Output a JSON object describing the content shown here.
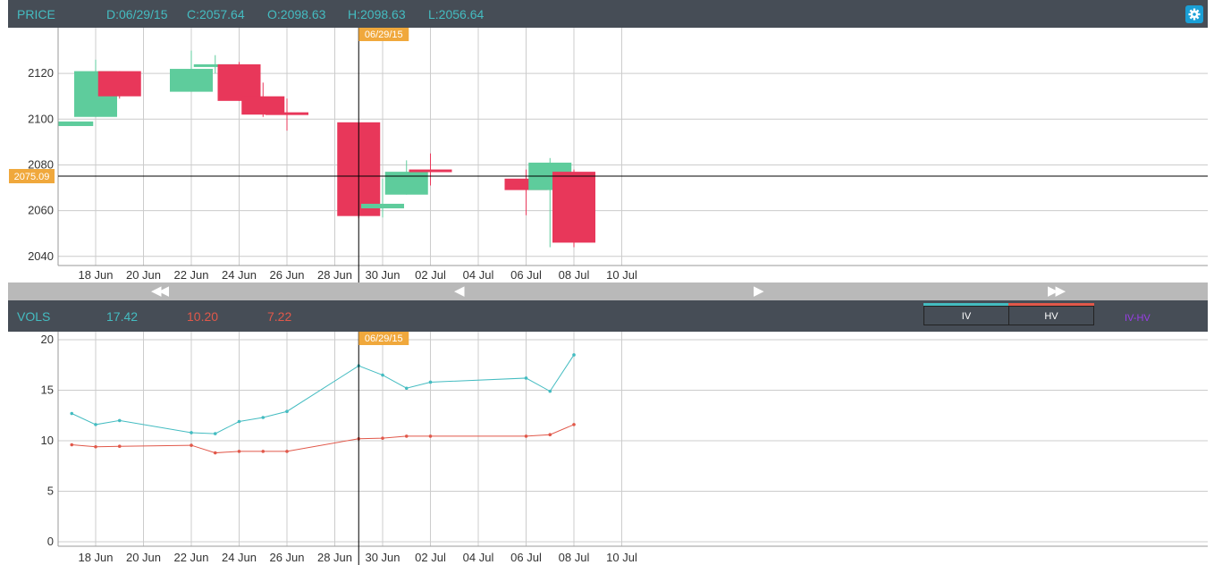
{
  "price_header": {
    "label": "PRICE",
    "date": "D:06/29/15",
    "close": "C:2057.64",
    "open": "O:2098.63",
    "high": "H:2098.63",
    "low": "L:2056.64",
    "settings_icon": "gear-icon"
  },
  "vols_header": {
    "label": "VOLS",
    "iv_value": "17.42",
    "hv_value": "10.20",
    "diff_value": "7.22",
    "iv_button": "IV",
    "hv_button": "HV",
    "diff_button": "IV-HV"
  },
  "navigation": {
    "fast_back": "◀◀",
    "back": "◀",
    "forward": "▶",
    "fast_forward": "▶▶"
  },
  "colors": {
    "up": "#5ecc9c",
    "down": "#e8375a",
    "iv": "#44bcc1",
    "hv": "#e1584a",
    "diff": "#9b3dea",
    "crosshair_badge": "#f0a83c",
    "header_bg": "#464d56",
    "header_text": "#44bcc1"
  },
  "crosshair": {
    "date": "06/29/15",
    "price": "2075.09"
  },
  "chart_data": [
    {
      "type": "candlestick",
      "title": "PRICE",
      "ylim": [
        2036,
        2140
      ],
      "yticks": [
        2040,
        2060,
        2080,
        2100,
        2120
      ],
      "xticks": [
        "18 Jun",
        "20 Jun",
        "22 Jun",
        "24 Jun",
        "26 Jun",
        "28 Jun",
        "30 Jun",
        "02 Jul",
        "04 Jul",
        "06 Jul",
        "08 Jul",
        "10 Jul"
      ],
      "grid": true,
      "candles": [
        {
          "date": "2015-06-17",
          "open": 2097,
          "close": 2099,
          "high": 2099,
          "low": 2097
        },
        {
          "date": "2015-06-18",
          "open": 2101,
          "close": 2121,
          "high": 2126,
          "low": 2101
        },
        {
          "date": "2015-06-19",
          "open": 2121,
          "close": 2110,
          "high": 2121,
          "low": 2109
        },
        {
          "date": "2015-06-22",
          "open": 2112,
          "close": 2122,
          "high": 2130,
          "low": 2112
        },
        {
          "date": "2015-06-23",
          "open": 2123,
          "close": 2124,
          "high": 2128,
          "low": 2120
        },
        {
          "date": "2015-06-24",
          "open": 2124,
          "close": 2108,
          "high": 2125,
          "low": 2108
        },
        {
          "date": "2015-06-25",
          "open": 2110,
          "close": 2102,
          "high": 2116,
          "low": 2101
        },
        {
          "date": "2015-06-26",
          "open": 2103,
          "close": 2102,
          "high": 2109,
          "low": 2095
        },
        {
          "date": "2015-06-29",
          "open": 2098.63,
          "close": 2057.64,
          "high": 2098.63,
          "low": 2056.64
        },
        {
          "date": "2015-06-30",
          "open": 2061,
          "close": 2063,
          "high": 2074,
          "low": 2057
        },
        {
          "date": "2015-07-01",
          "open": 2067,
          "close": 2077,
          "high": 2082,
          "low": 2067
        },
        {
          "date": "2015-07-02",
          "open": 2078,
          "close": 2077,
          "high": 2085,
          "low": 2071
        },
        {
          "date": "2015-07-06",
          "open": 2074,
          "close": 2069,
          "high": 2078,
          "low": 2058
        },
        {
          "date": "2015-07-07",
          "open": 2069,
          "close": 2081,
          "high": 2083,
          "low": 2044
        },
        {
          "date": "2015-07-08",
          "open": 2077,
          "close": 2046,
          "high": 2078,
          "low": 2044
        }
      ]
    },
    {
      "type": "line",
      "title": "VOLS",
      "ylim": [
        0,
        20
      ],
      "yticks": [
        0,
        5,
        10,
        15,
        20
      ],
      "xticks": [
        "18 Jun",
        "20 Jun",
        "22 Jun",
        "24 Jun",
        "26 Jun",
        "28 Jun",
        "30 Jun",
        "02 Jul",
        "04 Jul",
        "06 Jul",
        "08 Jul",
        "10 Jul"
      ],
      "grid": true,
      "dates": [
        "2015-06-17",
        "2015-06-18",
        "2015-06-19",
        "2015-06-22",
        "2015-06-23",
        "2015-06-24",
        "2015-06-25",
        "2015-06-26",
        "2015-06-29",
        "2015-06-30",
        "2015-07-01",
        "2015-07-02",
        "2015-07-06",
        "2015-07-07",
        "2015-07-08"
      ],
      "series": [
        {
          "name": "IV",
          "values": [
            12.7,
            11.6,
            12.0,
            10.8,
            10.7,
            11.9,
            12.3,
            12.9,
            17.42,
            16.5,
            15.2,
            15.8,
            16.2,
            14.9,
            18.5
          ]
        },
        {
          "name": "HV",
          "values": [
            9.6,
            9.4,
            9.45,
            9.55,
            8.8,
            8.95,
            8.95,
            8.95,
            10.2,
            10.25,
            10.45,
            10.45,
            10.45,
            10.6,
            11.6
          ]
        }
      ]
    }
  ]
}
